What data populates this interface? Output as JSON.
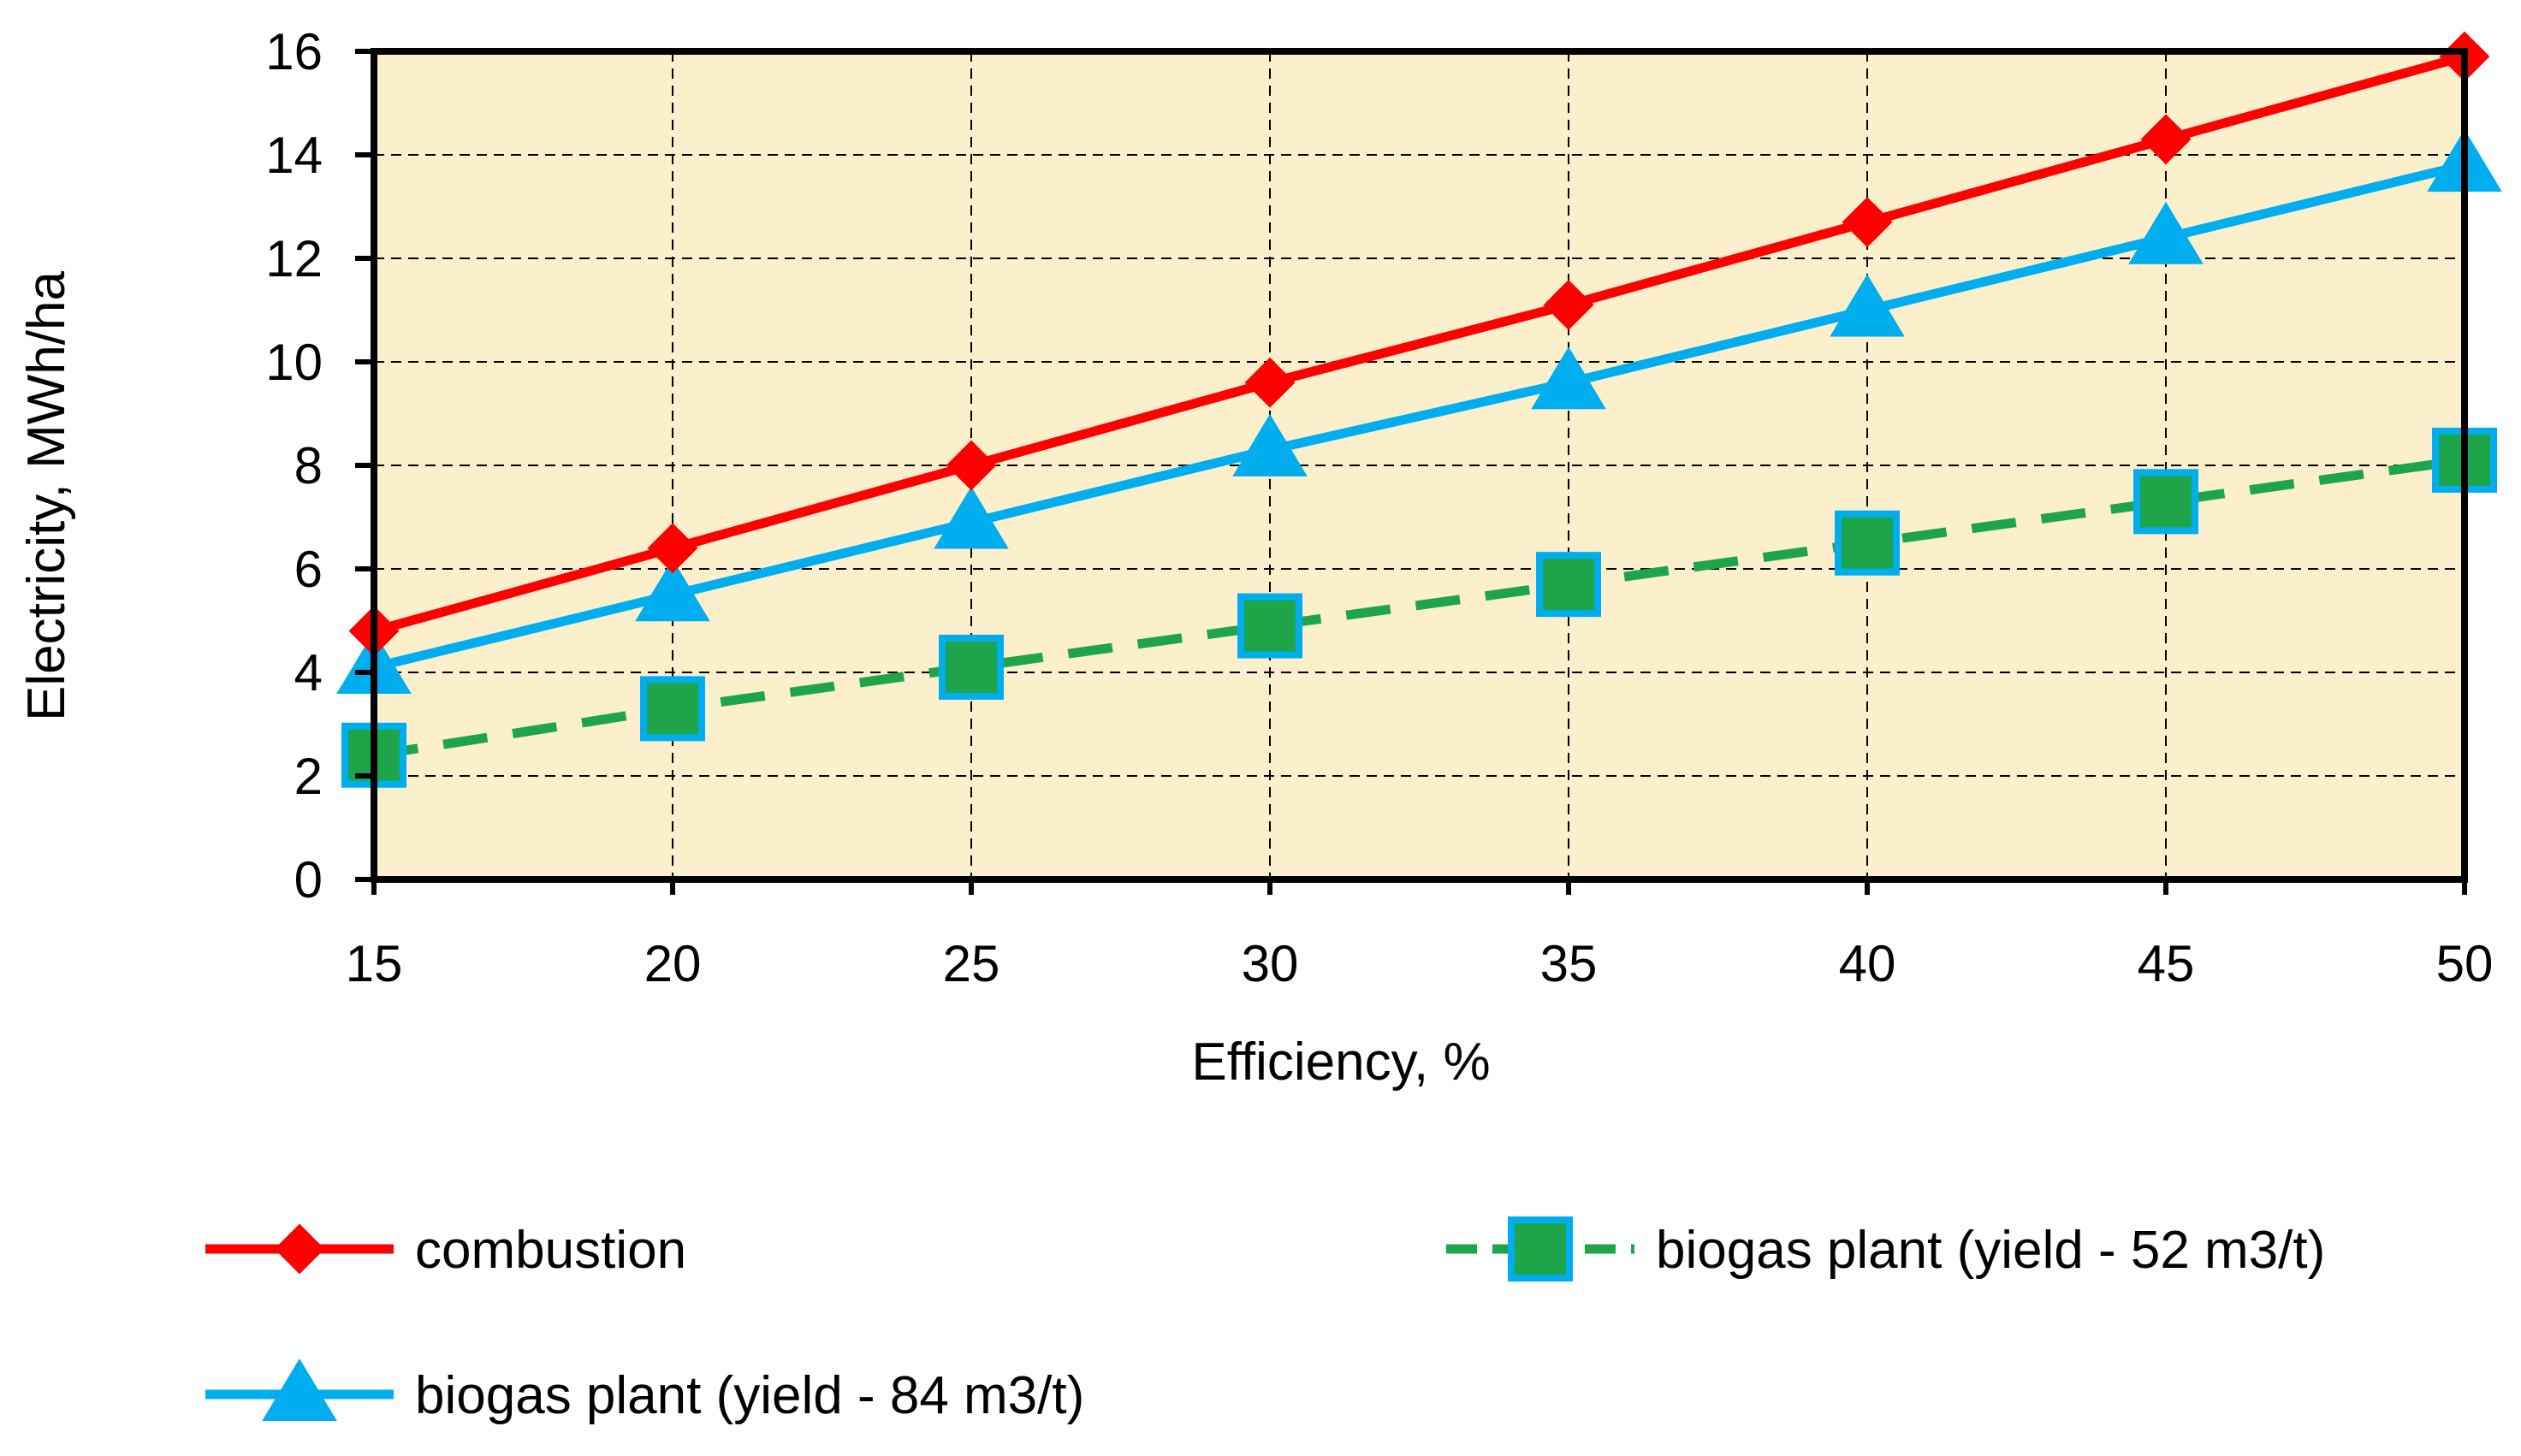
{
  "chart_data": {
    "type": "line",
    "title": "",
    "xlabel": "Efficiency, %",
    "ylabel": "Electricity, MWh/ha",
    "x": [
      15,
      20,
      25,
      30,
      35,
      40,
      45,
      50
    ],
    "xlim": [
      15,
      50
    ],
    "ylim": [
      0,
      16
    ],
    "yticks": [
      0,
      2,
      4,
      6,
      8,
      10,
      12,
      14,
      16
    ],
    "grid": true,
    "plot_background": "#FCEFCB",
    "legend_position": "bottom",
    "series": [
      {
        "name": "combustion",
        "values": [
          4.8,
          6.4,
          8.0,
          9.6,
          11.1,
          12.7,
          14.3,
          15.9
        ],
        "color": "#FF0000",
        "marker": "diamond",
        "line_style": "solid"
      },
      {
        "name": "biogas plant (yield - 52 m3/t)",
        "values": [
          2.4,
          3.3,
          4.1,
          4.9,
          5.7,
          6.5,
          7.3,
          8.1
        ],
        "color": "#1EA54A",
        "marker_edge_color": "#00AEEF",
        "marker": "square",
        "line_style": "dashed"
      },
      {
        "name": "biogas plant (yield - 84 m3/t)",
        "values": [
          4.1,
          5.5,
          6.9,
          8.3,
          9.6,
          11.0,
          12.4,
          13.8
        ],
        "color": "#00AEEF",
        "marker": "triangle",
        "line_style": "solid"
      }
    ]
  }
}
